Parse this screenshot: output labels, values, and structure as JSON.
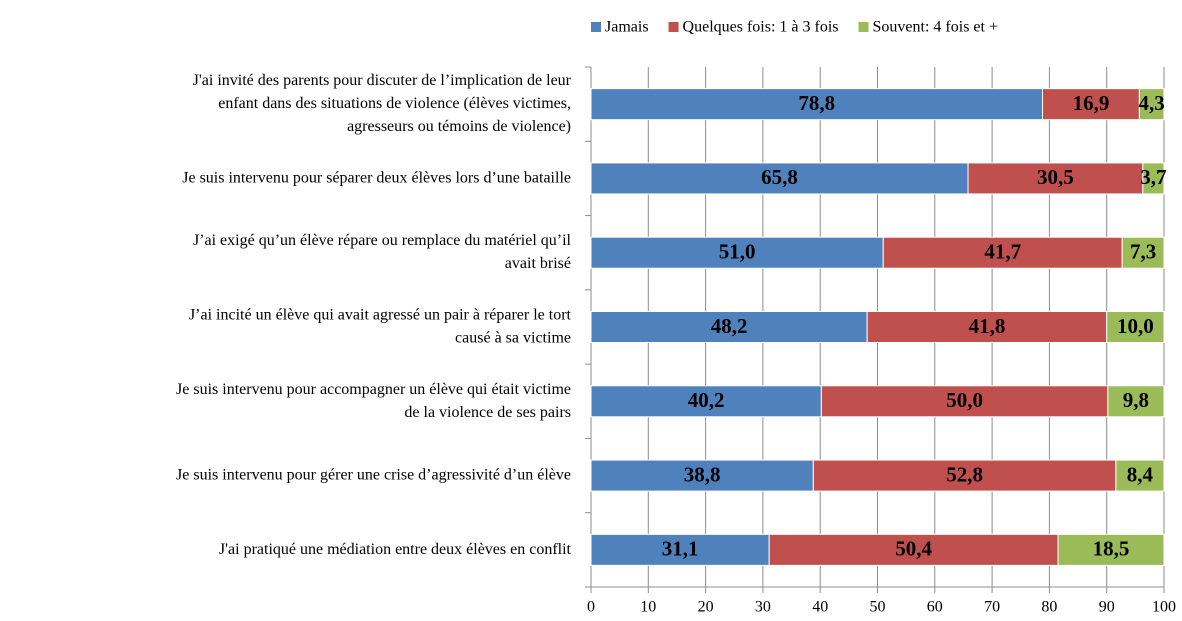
{
  "chart_data": {
    "type": "stacked_bar_horizontal",
    "categories": [
      "J'ai invité des parents pour discuter de l’implication de leur\nenfant dans des situations de violence (élèves victimes,\nagresseurs ou témoins de violence)",
      "Je suis intervenu pour séparer deux élèves lors d’une bataille",
      "J’ai exigé qu’un élève répare ou remplace du matériel qu’il\navait brisé",
      "J’ai incité un élève qui avait agressé un pair à réparer le tort\ncausé à sa victime",
      "Je suis intervenu pour accompagner un élève qui était victime\nde la violence de ses pairs",
      "Je suis intervenu pour gérer une crise d’agressivité d’un élève",
      "J'ai pratiqué une médiation entre deux élèves en conflit"
    ],
    "series": [
      {
        "name": "Jamais",
        "color": "#4f81bd",
        "values": [
          78.8,
          65.8,
          51.0,
          48.2,
          40.2,
          38.8,
          31.1
        ],
        "value_labels": [
          "78,8",
          "65,8",
          "51,0",
          "48,2",
          "40,2",
          "38,8",
          "31,1"
        ]
      },
      {
        "name": "Quelques fois: 1 à 3 fois",
        "color": "#c0504d",
        "values": [
          16.9,
          30.5,
          41.7,
          41.8,
          50.0,
          52.8,
          50.4
        ],
        "value_labels": [
          "16,9",
          "30,5",
          "41,7",
          "41,8",
          "50,0",
          "52,8",
          "50,4"
        ]
      },
      {
        "name": "Souvent: 4 fois et +",
        "color": "#9bbb59",
        "values": [
          4.3,
          3.7,
          7.3,
          10.0,
          9.8,
          8.4,
          18.5
        ],
        "value_labels": [
          "4,3",
          "3,7",
          "7,3",
          "10,0",
          "9,8",
          "8,4",
          "18,5"
        ]
      }
    ],
    "xlim": [
      0,
      100
    ],
    "xticks": [
      0,
      10,
      20,
      30,
      40,
      50,
      60,
      70,
      80,
      90,
      100
    ],
    "grid": true,
    "legend": "top"
  }
}
